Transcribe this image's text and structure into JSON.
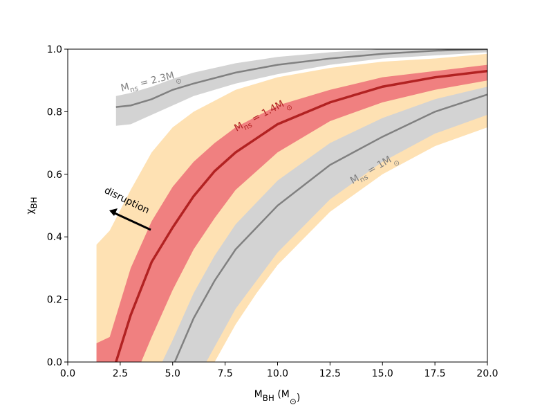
{
  "chart_data": {
    "type": "line",
    "xlabel": {
      "text": "M",
      "sub": "BH",
      "rest": "  (M",
      "sub2": "⊙",
      "end": ")"
    },
    "ylabel": {
      "text": "χ",
      "sub": "BH"
    },
    "xlim": [
      0,
      20
    ],
    "ylim": [
      0,
      1
    ],
    "xticks": [
      {
        "value": 0,
        "label": "0.0"
      },
      {
        "value": 2.5,
        "label": "2.5"
      },
      {
        "value": 5,
        "label": "5.0"
      },
      {
        "value": 7.5,
        "label": "7.5"
      },
      {
        "value": 10,
        "label": "10.0"
      },
      {
        "value": 12.5,
        "label": "12.5"
      },
      {
        "value": 15,
        "label": "15.0"
      },
      {
        "value": 17.5,
        "label": "17.5"
      },
      {
        "value": 20,
        "label": "20.0"
      }
    ],
    "yticks": [
      {
        "value": 0,
        "label": "0.0"
      },
      {
        "value": 0.2,
        "label": "0.2"
      },
      {
        "value": 0.4,
        "label": "0.4"
      },
      {
        "value": 0.6,
        "label": "0.6"
      },
      {
        "value": 0.8,
        "label": "0.8"
      },
      {
        "value": 1,
        "label": "1.0"
      }
    ],
    "bands": [
      {
        "color": "#fee1b3",
        "x_upper": [
          1.37,
          2,
          3,
          4,
          5,
          6,
          8,
          10,
          12.5,
          15,
          17.5,
          20
        ],
        "upper": [
          0.375,
          0.42,
          0.55,
          0.67,
          0.75,
          0.8,
          0.87,
          0.91,
          0.94,
          0.96,
          0.97,
          0.985
        ],
        "x_lower": [
          1.37,
          7,
          8,
          9,
          10,
          12.5,
          15,
          17.5,
          20
        ],
        "lower": [
          0,
          0,
          0.12,
          0.22,
          0.31,
          0.48,
          0.6,
          0.69,
          0.75
        ]
      },
      {
        "color": "#d3d3d3",
        "x_upper": [
          4.5,
          5,
          6,
          7,
          8,
          10,
          12.5,
          15,
          17.5,
          20
        ],
        "upper": [
          0,
          0.07,
          0.22,
          0.34,
          0.44,
          0.58,
          0.7,
          0.78,
          0.84,
          0.88
        ],
        "x_lower": [
          6.6,
          8,
          10,
          12.5,
          15,
          17.5,
          20
        ],
        "lower": [
          0,
          0.17,
          0.35,
          0.52,
          0.64,
          0.73,
          0.79
        ]
      },
      {
        "color": "#f08080",
        "x_upper": [
          1.37,
          2,
          3,
          4,
          5,
          6,
          7,
          8,
          10,
          12.5,
          15,
          17.5,
          20
        ],
        "upper": [
          0.06,
          0.08,
          0.3,
          0.45,
          0.56,
          0.64,
          0.7,
          0.75,
          0.82,
          0.87,
          0.91,
          0.93,
          0.95
        ],
        "x_lower": [
          1.37,
          3.5,
          4,
          5,
          6,
          7,
          8,
          10,
          12.5,
          15,
          17.5,
          20
        ],
        "lower": [
          0,
          0,
          0.08,
          0.23,
          0.36,
          0.46,
          0.55,
          0.67,
          0.77,
          0.83,
          0.87,
          0.9
        ]
      },
      {
        "color": "#d3d3d3",
        "x_upper": [
          2.3,
          3,
          4,
          5,
          6,
          8,
          10,
          12.5,
          15,
          17.5,
          20
        ],
        "upper": [
          0.85,
          0.86,
          0.88,
          0.905,
          0.925,
          0.955,
          0.975,
          0.99,
          1.0,
          1.0,
          1.0
        ],
        "x_lower": [
          2.3,
          3,
          4,
          5,
          6,
          8,
          10,
          12.5,
          15,
          17.5,
          20
        ],
        "lower": [
          0.755,
          0.76,
          0.79,
          0.82,
          0.85,
          0.89,
          0.92,
          0.95,
          0.97,
          0.98,
          0.99
        ]
      }
    ],
    "series": [
      {
        "color": "#808080",
        "x": [
          5.1,
          6,
          7,
          8,
          10,
          12.5,
          15,
          17.5,
          20
        ],
        "values": [
          0,
          0.14,
          0.26,
          0.36,
          0.5,
          0.63,
          0.72,
          0.8,
          0.855
        ]
      },
      {
        "color": "#b22222",
        "x": [
          2.3,
          3,
          4,
          5,
          6,
          7,
          8,
          10,
          12.5,
          15,
          17.5,
          20
        ],
        "values": [
          0,
          0.15,
          0.32,
          0.43,
          0.53,
          0.61,
          0.67,
          0.76,
          0.83,
          0.88,
          0.91,
          0.93
        ]
      },
      {
        "color": "#808080",
        "x": [
          2.3,
          3,
          4,
          5,
          6,
          8,
          10,
          12.5,
          15,
          17.5,
          20
        ],
        "values": [
          0.815,
          0.82,
          0.84,
          0.87,
          0.89,
          0.925,
          0.95,
          0.97,
          0.985,
          0.995,
          1.0
        ]
      }
    ],
    "annotations": [
      {
        "text": "M",
        "sub": "ns",
        "rest": " = 2.3M",
        "sub2": "⊙",
        "color": "#808080"
      },
      {
        "text": "M",
        "sub": "ns",
        "rest": " = 1.4M",
        "sub2": "⊙",
        "color": "#b22222"
      },
      {
        "text": "M",
        "sub": "ns",
        "rest": " = 1M",
        "sub2": "⊙",
        "color": "#808080"
      },
      {
        "text": "disruption",
        "color": "#000000"
      }
    ]
  }
}
